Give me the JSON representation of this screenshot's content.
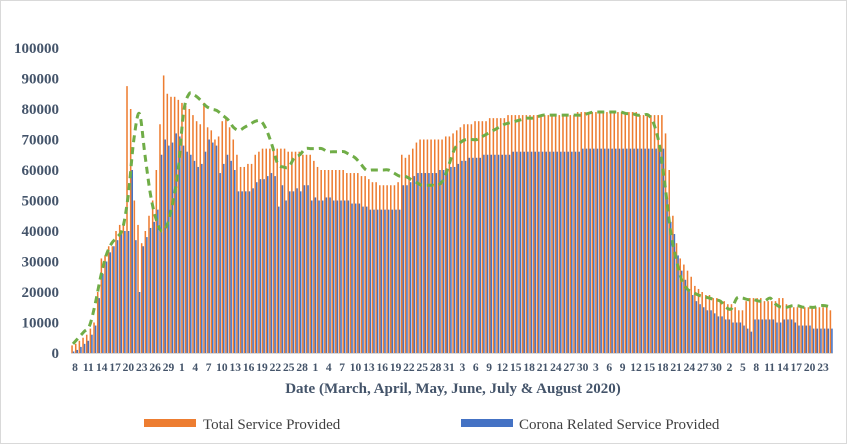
{
  "chart_data": {
    "type": "bar",
    "title": "",
    "xlabel": "Date (March, April, May, June, July & August 2020)",
    "ylabel": "",
    "ylim": [
      0,
      100000
    ],
    "yticks": [
      "0",
      "10000",
      "20000",
      "30000",
      "40000",
      "50000",
      "60000",
      "70000",
      "80000",
      "90000",
      "100000"
    ],
    "x_tick_labels": [
      "8",
      "11",
      "14",
      "17",
      "20",
      "23",
      "26",
      "29",
      "1",
      "4",
      "7",
      "10",
      "13",
      "16",
      "19",
      "22",
      "25",
      "28",
      "1",
      "4",
      "7",
      "10",
      "13",
      "16",
      "19",
      "22",
      "25",
      "28",
      "31",
      "3",
      "6",
      "9",
      "12",
      "15",
      "18",
      "21",
      "24",
      "27",
      "30",
      "3",
      "6",
      "9",
      "12",
      "15",
      "18",
      "21",
      "24",
      "27",
      "30",
      "2",
      "5",
      "8",
      "11",
      "14",
      "17",
      "20",
      "23"
    ],
    "grid": false,
    "legend_placement": "bottom",
    "colors": {
      "total": "#ed7d31",
      "corona": "#4472c4",
      "trend": "#70ad47",
      "axis_text": "#44546a"
    },
    "series": [
      {
        "name": "Total Service Provided",
        "values": [
          2500,
          3000,
          4000,
          5000,
          6000,
          8000,
          10000,
          20000,
          31000,
          32000,
          35000,
          35000,
          40000,
          42000,
          43000,
          87500,
          80000,
          50000,
          42000,
          36000,
          40000,
          45000,
          50000,
          60000,
          75000,
          91000,
          85000,
          84000,
          84000,
          83000,
          82000,
          81000,
          80000,
          78000,
          76000,
          75000,
          82000,
          74000,
          73000,
          70000,
          71000,
          76000,
          77000,
          74000,
          70000,
          65000,
          61000,
          61000,
          62000,
          62000,
          65000,
          66000,
          67000,
          67000,
          67000,
          67000,
          67000,
          67000,
          67000,
          66000,
          66000,
          66000,
          66000,
          65000,
          65000,
          65000,
          63000,
          61000,
          60000,
          60000,
          60000,
          60000,
          60000,
          60000,
          60000,
          59000,
          59000,
          59000,
          59000,
          58000,
          58000,
          57000,
          56000,
          56000,
          55000,
          55000,
          55000,
          55000,
          55000,
          56000,
          65000,
          64000,
          65000,
          67000,
          69000,
          70000,
          70000,
          70000,
          70000,
          70000,
          70000,
          70000,
          71000,
          71000,
          72000,
          73000,
          74000,
          75000,
          75000,
          75000,
          76000,
          76000,
          76000,
          76000,
          77000,
          77000,
          77000,
          77000,
          77000,
          78000,
          78000,
          78000,
          78000,
          78000,
          78000,
          78000,
          78000,
          78000,
          78000,
          78000,
          78000,
          78000,
          78000,
          78000,
          78000,
          78000,
          78000,
          78000,
          79000,
          79000,
          79000,
          79000,
          79000,
          79000,
          79000,
          79000,
          79000,
          79000,
          79000,
          79000,
          79000,
          79000,
          79000,
          79000,
          79000,
          78000,
          78000,
          78000,
          78000,
          78000,
          78000,
          78000,
          72000,
          60000,
          45000,
          36000,
          31000,
          29000,
          27000,
          25000,
          22000,
          21000,
          20000,
          19000,
          19000,
          18000,
          18000,
          17000,
          17000,
          16000,
          16000,
          15000,
          14000,
          14000,
          17000,
          18000,
          18000,
          18000,
          18000,
          17000,
          17000,
          17000,
          17000,
          18000,
          18000,
          16000,
          15000,
          15000,
          15000,
          15000,
          15000,
          15000,
          15000,
          15000,
          15000,
          15000,
          15000,
          14000
        ]
      },
      {
        "name": "Corona Related Service Provided",
        "values": [
          500,
          1000,
          2000,
          3000,
          4000,
          6000,
          9000,
          18000,
          26000,
          30000,
          33000,
          35000,
          37000,
          39000,
          40000,
          40000,
          60000,
          37000,
          20000,
          35000,
          38000,
          41000,
          43000,
          47000,
          65000,
          70000,
          68000,
          69000,
          72000,
          71000,
          68000,
          66000,
          65000,
          63000,
          61000,
          62000,
          66000,
          70000,
          69000,
          68000,
          59000,
          62000,
          65000,
          63000,
          60000,
          53000,
          53000,
          53000,
          53000,
          54000,
          56000,
          57000,
          57000,
          58000,
          59000,
          58000,
          48000,
          55000,
          50000,
          53000,
          53000,
          54000,
          53000,
          55000,
          55000,
          50000,
          51000,
          50000,
          50000,
          51000,
          51000,
          50000,
          50000,
          50000,
          50000,
          50000,
          49000,
          49000,
          49000,
          48000,
          48000,
          47000,
          47000,
          47000,
          47000,
          47000,
          47000,
          47000,
          47000,
          47000,
          55000,
          55000,
          56000,
          58000,
          59000,
          59000,
          59000,
          59000,
          59000,
          59000,
          60000,
          60000,
          60000,
          61000,
          61000,
          62000,
          63000,
          63000,
          64000,
          64000,
          64000,
          64000,
          65000,
          65000,
          65000,
          65000,
          65000,
          65000,
          65000,
          65000,
          66000,
          66000,
          66000,
          66000,
          66000,
          66000,
          66000,
          66000,
          66000,
          66000,
          66000,
          66000,
          66000,
          66000,
          66000,
          66000,
          66000,
          66000,
          66000,
          67000,
          67000,
          67000,
          67000,
          67000,
          67000,
          67000,
          67000,
          67000,
          67000,
          67000,
          67000,
          67000,
          67000,
          67000,
          67000,
          67000,
          67000,
          67000,
          67000,
          67000,
          67000,
          67000,
          51000,
          43000,
          39000,
          32000,
          27000,
          24000,
          21000,
          19000,
          17000,
          16000,
          15000,
          14000,
          14000,
          13000,
          12000,
          12000,
          11000,
          11000,
          10000,
          10000,
          10000,
          9000,
          8000,
          7000,
          11000,
          11000,
          11000,
          11000,
          11000,
          11000,
          10000,
          10000,
          11000,
          11000,
          11000,
          10000,
          9000,
          9000,
          9000,
          9000,
          8000,
          8000,
          8000,
          8000,
          8000,
          8000,
          8000,
          8000
        ]
      }
    ],
    "trend_series": {
      "name": "",
      "style": "dashed-curve",
      "values": [
        3000,
        5000,
        7000,
        9000,
        16000,
        25000,
        32000,
        36000,
        38000,
        41000,
        52000,
        70000,
        78500,
        65000,
        52000,
        44000,
        40000,
        42000,
        49000,
        60000,
        79000,
        85000,
        84500,
        83000,
        81000,
        80000,
        79500,
        78000,
        76500,
        74000,
        73000,
        74000,
        75000,
        76000,
        76000,
        73000,
        68000,
        62000,
        61000,
        61000,
        64000,
        65000,
        67000,
        67000,
        67000,
        67000,
        66000,
        66000,
        66000,
        66000,
        65000,
        64000,
        62000,
        60000,
        60000,
        60000,
        60000,
        60000,
        59000,
        58000,
        58000,
        57000,
        56000,
        55000,
        55000,
        55000,
        55000,
        57000,
        62000,
        67000,
        69000,
        70000,
        70000,
        70000,
        71000,
        72000,
        73000,
        74000,
        75000,
        75500,
        76000,
        76500,
        77000,
        77000,
        77500,
        78000,
        78000,
        78000,
        78000,
        78000,
        78000,
        78000,
        78000,
        78500,
        79000,
        79000,
        79000,
        79000,
        79000,
        79000,
        78500,
        78500,
        78000,
        78000,
        78000,
        75000,
        68000,
        55000,
        40000,
        31000,
        24000,
        21000,
        20000,
        19000,
        18500,
        18000,
        17500,
        17000,
        15000,
        14500,
        18000,
        18000,
        17500,
        17500,
        17000,
        17000,
        18000,
        16000,
        15000,
        15000,
        15500,
        15500,
        15000,
        15000,
        15000,
        15500,
        15500,
        15000
      ]
    }
  },
  "legend": {
    "total_label": "Total Service Provided",
    "corona_label": "Corona Related Service Provided"
  }
}
